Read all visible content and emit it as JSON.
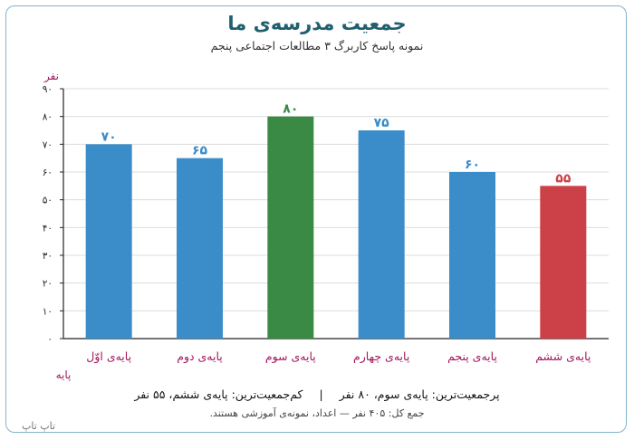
{
  "title": "جمعیت مدرسه‌ی ما",
  "subtitle": "نمونه پاسخ کاربرگ ۳ مطالعات اجتماعی پنجم",
  "summary": {
    "max_text": "پرجمعیت‌ترین: پایه‌ی سوم، ۸۰ نفر",
    "separator": "|",
    "min_text": "کم‌جمعیت‌ترین: پایه‌ی ششم، ۵۵ نفر"
  },
  "note": "جمع کل: ۴۰۵ نفر — اعداد، نمونه‌ی آموزشی هستند.",
  "brand": "تاپ تاپ",
  "colors": {
    "default": "#3a8dc9",
    "max": "#3a8a45",
    "min": "#cc4048",
    "axis_label": "#a0185a",
    "title": "#1f5f70"
  },
  "chart_data": {
    "type": "bar",
    "categories": [
      "پایه‌ی اوّل",
      "پایه‌ی دوم",
      "پایه‌ی سوم",
      "پایه‌ی چهارم",
      "پایه‌ی پنجم",
      "پایه‌ی ششم"
    ],
    "values": [
      70,
      65,
      80,
      75,
      60,
      55
    ],
    "value_labels": [
      "۷۰",
      "۶۵",
      "۸۰",
      "۷۵",
      "۶۰",
      "۵۵"
    ],
    "bar_colors": [
      "#3a8dc9",
      "#3a8dc9",
      "#3a8a45",
      "#3a8dc9",
      "#3a8dc9",
      "#cc4048"
    ],
    "ylim": [
      0,
      90
    ],
    "yticks": [
      0,
      10,
      20,
      30,
      40,
      50,
      60,
      70,
      80,
      90
    ],
    "ytick_labels": [
      "۰",
      "۱۰",
      "۲۰",
      "۳۰",
      "۴۰",
      "۵۰",
      "۶۰",
      "۷۰",
      "۸۰",
      "۹۰"
    ],
    "ylabel": "نفر",
    "xlabel": "پایه",
    "grid": true
  }
}
